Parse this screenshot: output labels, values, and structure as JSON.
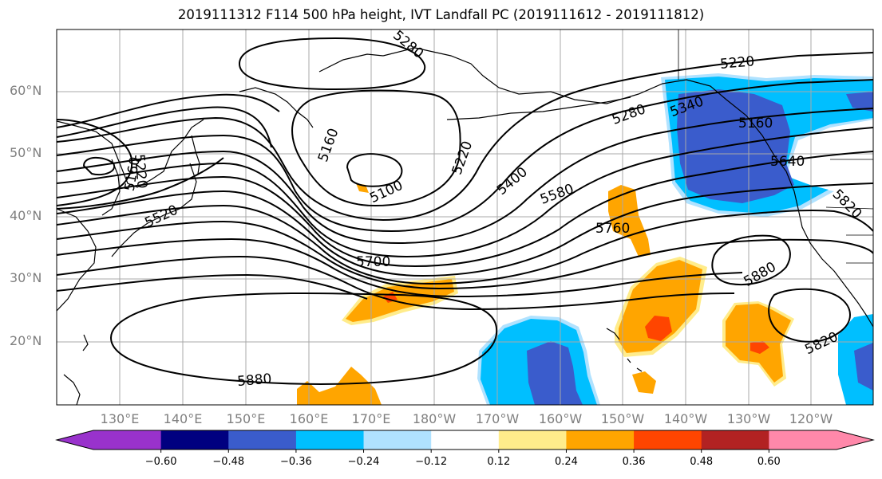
{
  "title": "2019111312 F114 500 hPa height, IVT Landfall PC (2019111612 - 2019111812)",
  "lat_labels": [
    "60°N",
    "50°N",
    "40°N",
    "30°N",
    "20°N"
  ],
  "lon_labels": [
    "130°E",
    "140°E",
    "150°E",
    "160°E",
    "170°E",
    "180°W",
    "170°W",
    "160°W",
    "150°W",
    "140°W",
    "130°W",
    "120°W"
  ],
  "contour_labels": [
    "5280",
    "5160",
    "5220",
    "5160",
    "5100",
    "5220",
    "5340",
    "5160",
    "5640",
    "5220",
    "5280",
    "5400",
    "5580",
    "5520",
    "5760",
    "5700",
    "5820",
    "5880",
    "5820",
    "5880"
  ],
  "colorbar": {
    "ticks": [
      "−0.60",
      "−0.48",
      "−0.36",
      "−0.24",
      "−0.12",
      "0.12",
      "0.24",
      "0.36",
      "0.48",
      "0.60"
    ],
    "colors": [
      "#9932cc",
      "#000080",
      "#3a5ccc",
      "#00bfff",
      "#b0e2ff",
      "#ffffff",
      "#ffec8b",
      "#ffa500",
      "#ff4500",
      "#b22222",
      "#ff88aa",
      "#ff88aa"
    ]
  },
  "fill_colors": {
    "neg_strong": "#3a5ccc",
    "neg_mid": "#00bfff",
    "neg_weak": "#b0e2ff",
    "pos_weak": "#ffec8b",
    "pos_mid": "#ffa500",
    "pos_strong": "#ff4500"
  }
}
